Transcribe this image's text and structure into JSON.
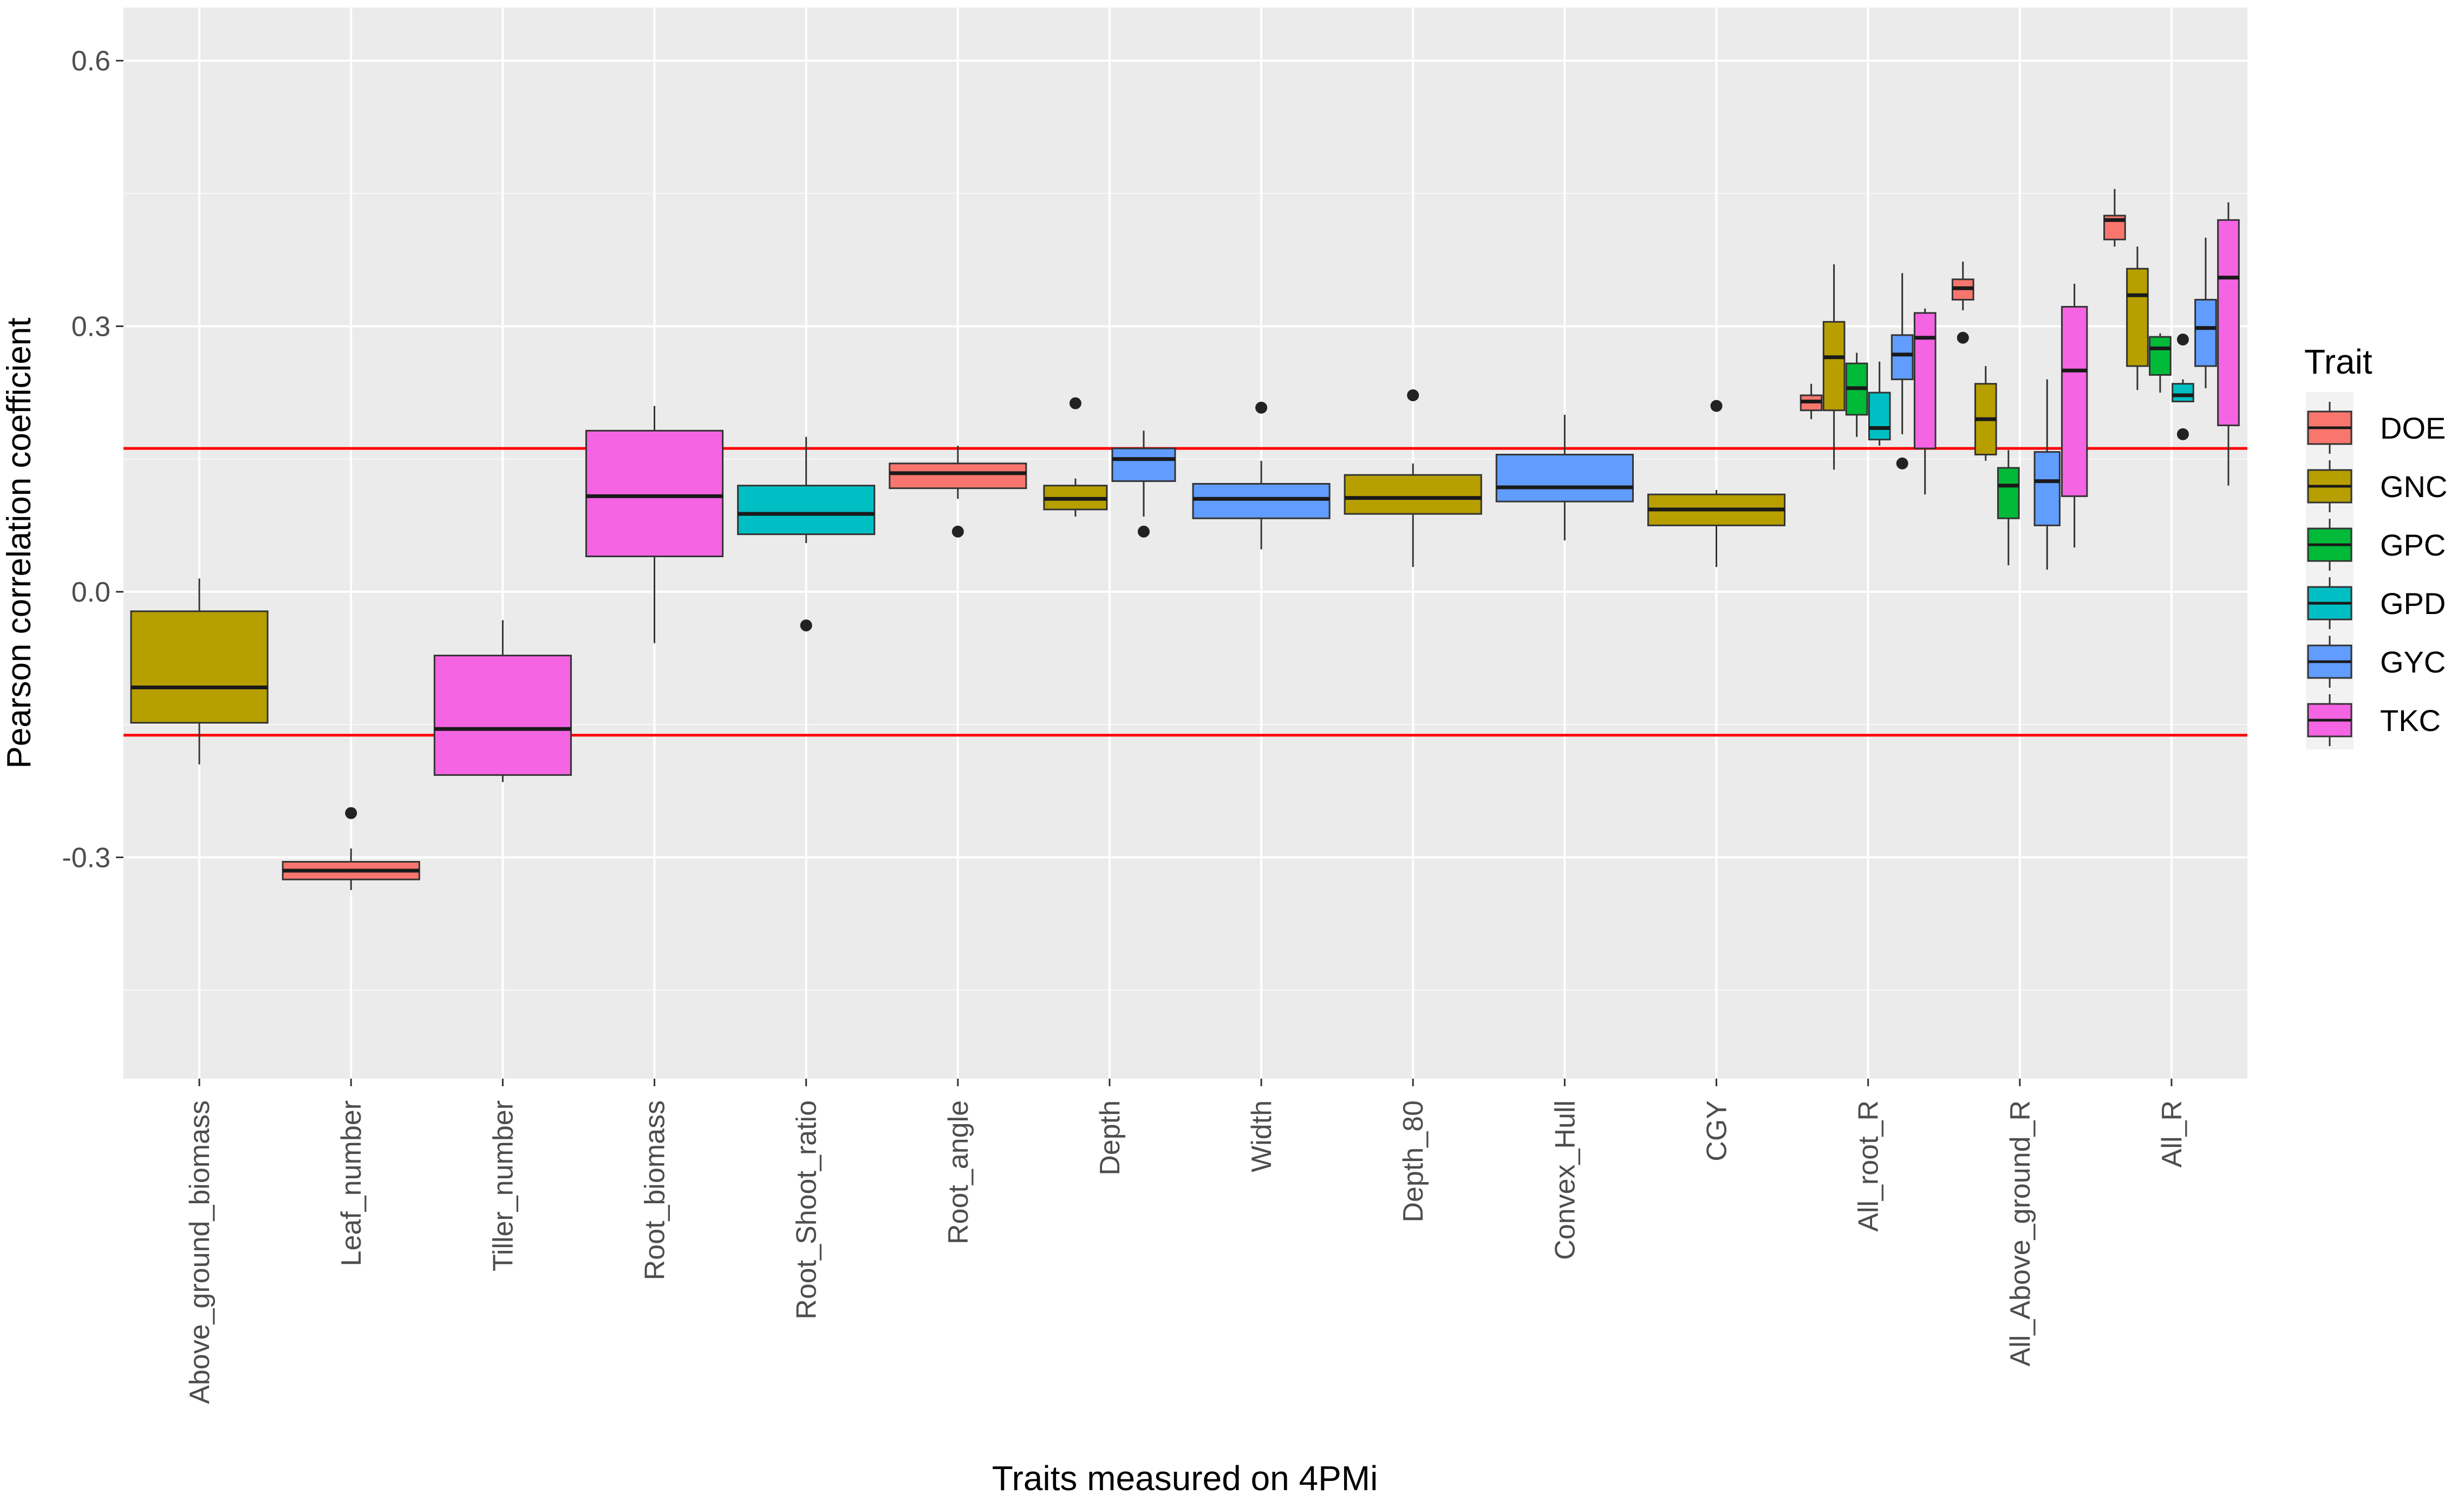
{
  "chart_data": {
    "type": "boxplot",
    "title": "",
    "xlabel": "Traits measured on 4PMi",
    "ylabel": "Pearson correlation coefficient",
    "ylim": [
      -0.55,
      0.66
    ],
    "yticks": [
      -0.3,
      0.0,
      0.3,
      0.6
    ],
    "ytick_labels": [
      "-0.3",
      "0.0",
      "0.3",
      "0.6"
    ],
    "grid": true,
    "reference_lines": [
      {
        "y": 0.162,
        "color": "#ff0000"
      },
      {
        "y": -0.162,
        "color": "#ff0000"
      }
    ],
    "categories": [
      "Above_ground_biomass",
      "Leaf_number",
      "Tiller_number",
      "Root_biomass",
      "Root_Shoot_ratio",
      "Root_angle",
      "Depth",
      "Width",
      "Depth_80",
      "Convex_Hull",
      "CGY",
      "All_root_R",
      "All_Above_ground_R",
      "All_R"
    ],
    "legend": {
      "title": "Trait",
      "position": "right",
      "entries": [
        {
          "name": "DOE",
          "color": "#F8766D"
        },
        {
          "name": "GNC",
          "color": "#B79F00"
        },
        {
          "name": "GPC",
          "color": "#00BA38"
        },
        {
          "name": "GPD",
          "color": "#00BFC4"
        },
        {
          "name": "GYC",
          "color": "#619CFF"
        },
        {
          "name": "TKC",
          "color": "#F564E3"
        }
      ]
    },
    "boxes": [
      {
        "category": "Above_ground_biomass",
        "trait": "GNC",
        "min": -0.195,
        "q1": -0.148,
        "median": -0.108,
        "q3": -0.022,
        "max": 0.015,
        "outliers": []
      },
      {
        "category": "Leaf_number",
        "trait": "DOE",
        "min": -0.337,
        "q1": -0.325,
        "median": -0.315,
        "q3": -0.305,
        "max": -0.29,
        "outliers": [
          -0.25
        ]
      },
      {
        "category": "Tiller_number",
        "trait": "TKC",
        "min": -0.215,
        "q1": -0.207,
        "median": -0.155,
        "q3": -0.072,
        "max": -0.032,
        "outliers": []
      },
      {
        "category": "Root_biomass",
        "trait": "TKC",
        "min": -0.058,
        "q1": 0.04,
        "median": 0.108,
        "q3": 0.182,
        "max": 0.21,
        "outliers": []
      },
      {
        "category": "Root_Shoot_ratio",
        "trait": "GPD",
        "min": 0.055,
        "q1": 0.065,
        "median": 0.088,
        "q3": 0.12,
        "max": 0.175,
        "outliers": [
          -0.038
        ]
      },
      {
        "category": "Root_angle",
        "trait": "DOE",
        "min": 0.105,
        "q1": 0.117,
        "median": 0.134,
        "q3": 0.145,
        "max": 0.165,
        "outliers": [
          0.068
        ]
      },
      {
        "category": "Depth",
        "trait": "GNC",
        "min": 0.085,
        "q1": 0.093,
        "median": 0.105,
        "q3": 0.12,
        "max": 0.128,
        "outliers": [
          0.213
        ],
        "slot": 0,
        "slots": 2
      },
      {
        "category": "Depth",
        "trait": "GYC",
        "min": 0.085,
        "q1": 0.125,
        "median": 0.15,
        "q3": 0.162,
        "max": 0.182,
        "outliers": [
          0.068
        ],
        "slot": 1,
        "slots": 2
      },
      {
        "category": "Width",
        "trait": "GYC",
        "min": 0.048,
        "q1": 0.083,
        "median": 0.105,
        "q3": 0.122,
        "max": 0.148,
        "outliers": [
          0.208
        ]
      },
      {
        "category": "Depth_80",
        "trait": "GNC",
        "min": 0.028,
        "q1": 0.088,
        "median": 0.106,
        "q3": 0.132,
        "max": 0.145,
        "outliers": [
          0.222
        ]
      },
      {
        "category": "Convex_Hull",
        "trait": "GYC",
        "min": 0.058,
        "q1": 0.102,
        "median": 0.118,
        "q3": 0.155,
        "max": 0.2,
        "outliers": []
      },
      {
        "category": "CGY",
        "trait": "GNC",
        "min": 0.028,
        "q1": 0.075,
        "median": 0.093,
        "q3": 0.11,
        "max": 0.115,
        "outliers": [
          0.21
        ]
      },
      {
        "category": "All_root_R",
        "trait": "DOE",
        "min": 0.195,
        "q1": 0.205,
        "median": 0.215,
        "q3": 0.222,
        "max": 0.235,
        "outliers": [],
        "slot": 0,
        "slots": 6
      },
      {
        "category": "All_root_R",
        "trait": "GNC",
        "min": 0.138,
        "q1": 0.205,
        "median": 0.265,
        "q3": 0.305,
        "max": 0.37,
        "outliers": [],
        "slot": 1,
        "slots": 6
      },
      {
        "category": "All_root_R",
        "trait": "GPC",
        "min": 0.175,
        "q1": 0.2,
        "median": 0.23,
        "q3": 0.258,
        "max": 0.27,
        "outliers": [],
        "slot": 2,
        "slots": 6
      },
      {
        "category": "All_root_R",
        "trait": "GPD",
        "min": 0.165,
        "q1": 0.172,
        "median": 0.185,
        "q3": 0.225,
        "max": 0.26,
        "outliers": [],
        "slot": 3,
        "slots": 6
      },
      {
        "category": "All_root_R",
        "trait": "GYC",
        "min": 0.178,
        "q1": 0.24,
        "median": 0.268,
        "q3": 0.29,
        "max": 0.36,
        "outliers": [
          0.145
        ],
        "slot": 4,
        "slots": 6
      },
      {
        "category": "All_root_R",
        "trait": "TKC",
        "min": 0.11,
        "q1": 0.162,
        "median": 0.287,
        "q3": 0.315,
        "max": 0.32,
        "outliers": [],
        "slot": 5,
        "slots": 6
      },
      {
        "category": "All_Above_ground_R",
        "trait": "DOE",
        "min": 0.318,
        "q1": 0.33,
        "median": 0.343,
        "q3": 0.353,
        "max": 0.373,
        "outliers": [
          0.287
        ],
        "slot": 0,
        "slots": 6
      },
      {
        "category": "All_Above_ground_R",
        "trait": "GNC",
        "min": 0.148,
        "q1": 0.155,
        "median": 0.195,
        "q3": 0.235,
        "max": 0.255,
        "outliers": [],
        "slot": 1,
        "slots": 6
      },
      {
        "category": "All_Above_ground_R",
        "trait": "GPC",
        "min": 0.03,
        "q1": 0.083,
        "median": 0.12,
        "q3": 0.14,
        "max": 0.16,
        "outliers": [],
        "slot": 2,
        "slots": 6
      },
      {
        "category": "All_Above_ground_R",
        "trait": "GYC",
        "min": 0.025,
        "q1": 0.075,
        "median": 0.125,
        "q3": 0.158,
        "max": 0.24,
        "outliers": [],
        "slot": 3,
        "slots": 5
      },
      {
        "category": "All_Above_ground_R",
        "trait": "TKC",
        "min": 0.05,
        "q1": 0.108,
        "median": 0.25,
        "q3": 0.322,
        "max": 0.348,
        "outliers": [],
        "slot": 4,
        "slots": 5
      },
      {
        "category": "All_R",
        "trait": "DOE",
        "min": 0.39,
        "q1": 0.398,
        "median": 0.42,
        "q3": 0.425,
        "max": 0.455,
        "outliers": [],
        "slot": 0,
        "slots": 6
      },
      {
        "category": "All_R",
        "trait": "GNC",
        "min": 0.228,
        "q1": 0.255,
        "median": 0.335,
        "q3": 0.365,
        "max": 0.39,
        "outliers": [],
        "slot": 1,
        "slots": 6
      },
      {
        "category": "All_R",
        "trait": "GPC",
        "min": 0.225,
        "q1": 0.245,
        "median": 0.275,
        "q3": 0.288,
        "max": 0.292,
        "outliers": [],
        "slot": 2,
        "slots": 6
      },
      {
        "category": "All_R",
        "trait": "GPD",
        "min": 0.215,
        "q1": 0.215,
        "median": 0.222,
        "q3": 0.235,
        "max": 0.24,
        "outliers": [
          0.285,
          0.178
        ],
        "slot": 3,
        "slots": 6
      },
      {
        "category": "All_R",
        "trait": "GYC",
        "min": 0.23,
        "q1": 0.255,
        "median": 0.298,
        "q3": 0.33,
        "max": 0.4,
        "outliers": [],
        "slot": 4,
        "slots": 6
      },
      {
        "category": "All_R",
        "trait": "TKC",
        "min": 0.12,
        "q1": 0.188,
        "median": 0.355,
        "q3": 0.42,
        "max": 0.44,
        "outliers": [],
        "slot": 5,
        "slots": 6
      }
    ]
  }
}
